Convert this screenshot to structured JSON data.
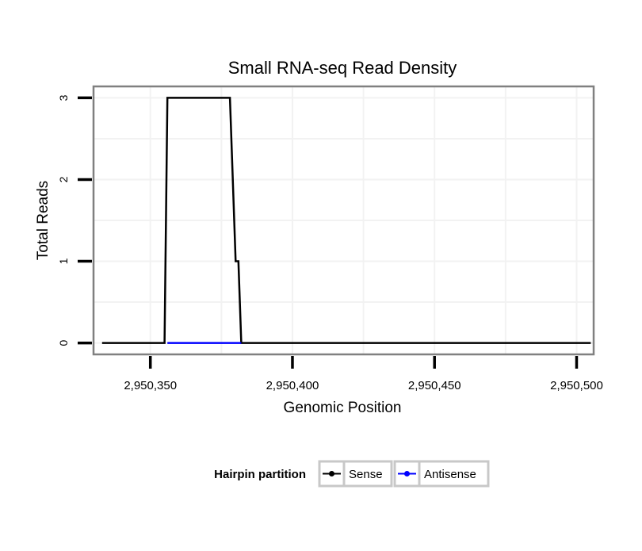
{
  "chart_data": {
    "type": "line",
    "title": "Small RNA-seq Read Density",
    "xlabel": "Genomic Position",
    "ylabel": "Total Reads",
    "xlim": [
      2950330,
      2950506
    ],
    "ylim": [
      -0.14,
      3.14
    ],
    "x_ticks": [
      2950350,
      2950400,
      2950450,
      2950500
    ],
    "x_tick_labels": [
      "2,950,350",
      "2,950,400",
      "2,950,450",
      "2,950,500"
    ],
    "y_ticks": [
      0,
      1,
      2,
      3
    ],
    "y_tick_labels": [
      "0",
      "1",
      "2",
      "3"
    ],
    "grid": true,
    "legend": {
      "title": "Hairpin partition",
      "placement": "bottom",
      "entries": [
        "Sense",
        "Antisense"
      ]
    },
    "series": [
      {
        "name": "Sense",
        "color": "#000000",
        "x": [
          2950333,
          2950355,
          2950356,
          2950378,
          2950380,
          2950381,
          2950382,
          2950505
        ],
        "y": [
          0,
          0,
          3,
          3,
          1,
          1,
          0,
          0
        ]
      },
      {
        "name": "Antisense",
        "color": "#0000ff",
        "x": [
          2950356,
          2950382
        ],
        "y": [
          0,
          0
        ]
      }
    ]
  }
}
